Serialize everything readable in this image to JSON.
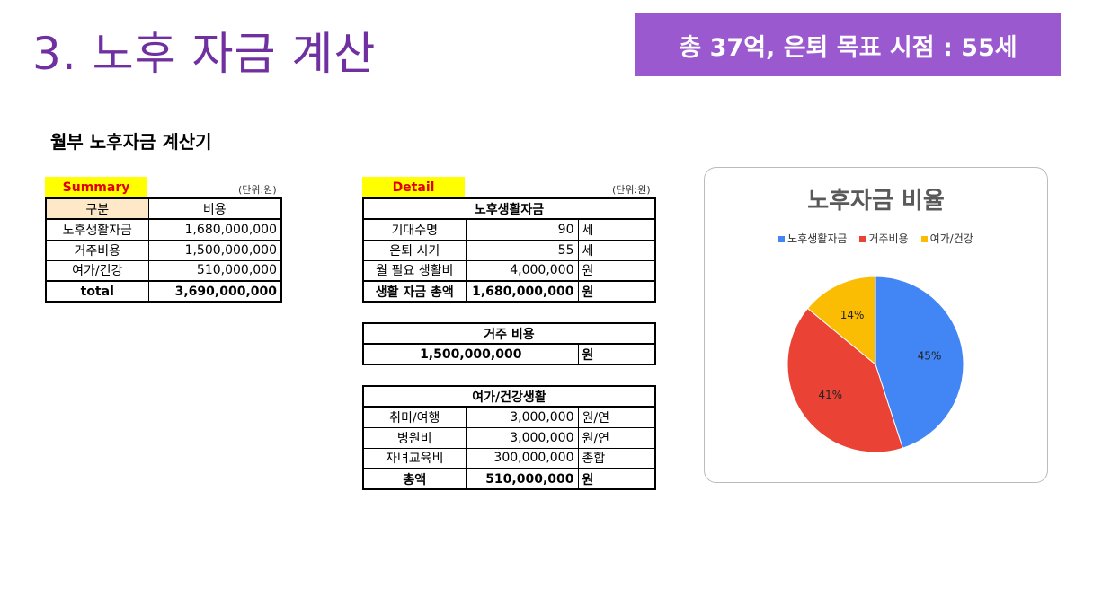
{
  "header": {
    "title": "3. 노후 자금 계산",
    "banner": "총 37억, 은퇴 목표 시점  : 55세"
  },
  "subtitle": "월부 노후자금 계산기",
  "summary": {
    "tag": "Summary",
    "unit": "(단위:원)",
    "headers": [
      "구분",
      "비용"
    ],
    "rows": [
      [
        "노후생활자금",
        "1,680,000,000"
      ],
      [
        "거주비용",
        "1,500,000,000"
      ],
      [
        "여가/건강",
        "510,000,000"
      ]
    ],
    "total": [
      "total",
      "3,690,000,000"
    ]
  },
  "detail": {
    "tag": "Detail",
    "unit": "(단위:원)",
    "living": {
      "title": "노후생활자금",
      "rows": [
        [
          "기대수명",
          "90",
          "세"
        ],
        [
          "은퇴 시기",
          "55",
          "세"
        ],
        [
          "월 필요 생활비",
          "4,000,000",
          "원"
        ]
      ],
      "total": [
        "생활 자금 총액",
        "1,680,000,000",
        "원"
      ]
    },
    "housing": {
      "title": "거주 비용",
      "value": "1,500,000,000",
      "unit": "원"
    },
    "leisure": {
      "title": "여가/건강생활",
      "rows": [
        [
          "취미/여행",
          "3,000,000",
          "원/연"
        ],
        [
          "병원비",
          "3,000,000",
          "원/연"
        ],
        [
          "자녀교육비",
          "300,000,000",
          "총합"
        ]
      ],
      "total": [
        "총액",
        "510,000,000",
        "원"
      ]
    }
  },
  "chart_data": {
    "type": "pie",
    "title": "노후자금 비율",
    "categories": [
      "노후생활자금",
      "거주비용",
      "여가/건강"
    ],
    "values": [
      45,
      41,
      14
    ],
    "labels": [
      "45%",
      "41%",
      "14%"
    ],
    "colors": [
      "#4285f4",
      "#ea4335",
      "#fbbc04"
    ],
    "legend": "top"
  }
}
